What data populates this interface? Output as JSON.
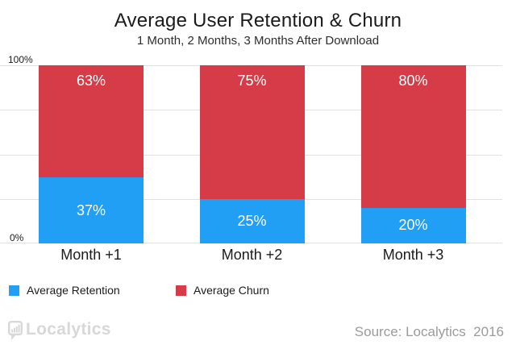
{
  "title": "Average User Retention & Churn",
  "subtitle": "1 Month, 2 Months, 3 Months After Download",
  "chart_data": {
    "type": "bar",
    "stacked": true,
    "categories": [
      "Month +1",
      "Month +2",
      "Month +3"
    ],
    "series": [
      {
        "name": "Average Retention",
        "color": "#219ff4",
        "values": [
          37,
          25,
          20
        ],
        "labels": [
          "37%",
          "25%",
          "20%"
        ]
      },
      {
        "name": "Average Churn",
        "color": "#d53c48",
        "values": [
          63,
          75,
          80
        ],
        "labels": [
          "63%",
          "75%",
          "80%"
        ]
      }
    ],
    "ylabel": "",
    "xlabel": "",
    "ylim": [
      0,
      100
    ],
    "yticks": [
      {
        "value": 100,
        "label": "100%"
      },
      {
        "value": 0,
        "label": "0%"
      }
    ],
    "gridline_values": [
      0,
      25,
      50,
      75,
      100
    ],
    "grid": true,
    "legend_position": "bottom-left"
  },
  "footer": {
    "logo_text": "Localytics",
    "logo_icon": "bar-chart-speech-bubble-icon",
    "source": "Source: Localytics  2016"
  }
}
